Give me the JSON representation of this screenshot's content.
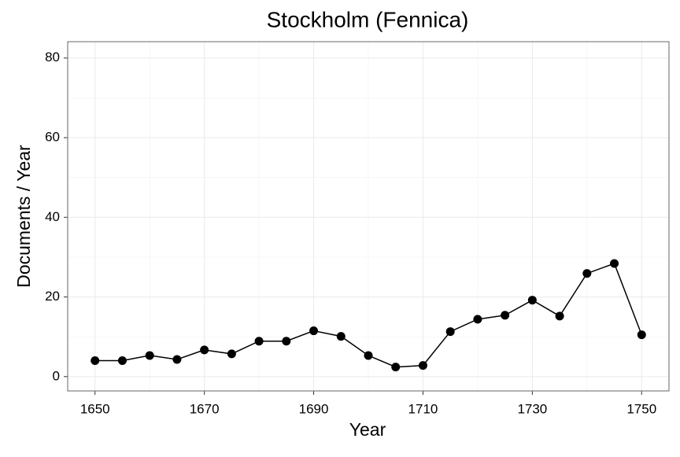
{
  "chart_data": {
    "type": "line",
    "title": "Stockholm (Fennica)",
    "x_label": "Year",
    "y_label": "Documents / Year",
    "x": [
      1650,
      1655,
      1660,
      1665,
      1670,
      1675,
      1680,
      1685,
      1690,
      1695,
      1700,
      1705,
      1710,
      1715,
      1720,
      1725,
      1730,
      1735,
      1740,
      1745,
      1750
    ],
    "series": [
      {
        "color": "#000000",
        "values": [
          4,
          4,
          5.3,
          4.3,
          6.7,
          5.7,
          8.9,
          8.9,
          11.5,
          10.1,
          5.3,
          2.4,
          2.8,
          11.3,
          14.4,
          15.4,
          19.2,
          15.2,
          25.9,
          28.4,
          10.5
        ]
      }
    ],
    "xlim": [
      1645,
      1755
    ],
    "xticks": [
      1650,
      1670,
      1690,
      1710,
      1730,
      1750
    ],
    "xminor": [
      1660,
      1680,
      1700,
      1720,
      1740
    ],
    "ylim": [
      -3.6,
      84.1
    ],
    "yticks": [
      0,
      20,
      40,
      60,
      80
    ],
    "yminor": [
      10,
      30,
      50,
      70
    ],
    "grid": true
  }
}
